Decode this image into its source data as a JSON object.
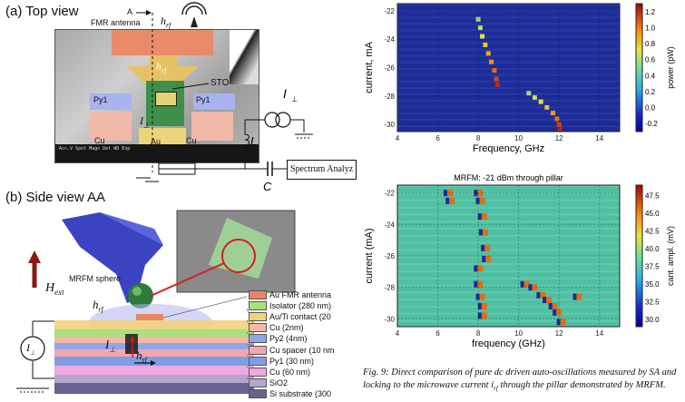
{
  "top_view": {
    "title": "(a) Top view",
    "antenna_label": "FMR antenna",
    "marker_a": "A",
    "h_rf": "h",
    "h_rf_sub": "rf",
    "sto_label": "STO",
    "py1_left": "Py1",
    "py1_right": "Py1",
    "cu_left": "Cu",
    "au_label": "Au",
    "cu_right": "Cu",
    "i_perp": "I",
    "inductor": "L",
    "capacitor": "C",
    "spectrum": "Spectrum Analyz",
    "sem_info": "Acc.V Spot Magn Det WD Exp"
  },
  "side_view": {
    "title": "(b) Side view AA",
    "mrfm_sphere": "MRFM sphere",
    "h_ext": "H",
    "h_ext_sub": "ext",
    "h_rf": "h",
    "h_rf_sub": "rf",
    "i_perp": "I",
    "layers": [
      {
        "label": "Au FMR antenna",
        "color": "#e8875f"
      },
      {
        "label": "Isolator (280 nm)",
        "color": "#a9e07c"
      },
      {
        "label": "Au/Ti contact (20",
        "color": "#f2d27a"
      },
      {
        "label": "Cu (2nm)",
        "color": "#f4b8a8"
      },
      {
        "label": "Py2 (4nm)",
        "color": "#8fa6e8"
      },
      {
        "label": "Cu spacer (10 nm",
        "color": "#f3a6b0"
      },
      {
        "label": "Py1 (30 nm)",
        "color": "#7f9de6"
      },
      {
        "label": "Cu (60 nm)",
        "color": "#f0a8e0"
      },
      {
        "label": "SiO2",
        "color": "#b7a6cc"
      },
      {
        "label": "Si substrate (300",
        "color": "#6a6390"
      }
    ]
  },
  "chart_data": [
    {
      "type": "heatmap",
      "title": "",
      "xlabel": "Frequency, GHz",
      "ylabel": "current, mA",
      "xlim": [
        4,
        15
      ],
      "ylim": [
        -30.5,
        -21.5
      ],
      "x_ticks": [
        4,
        6,
        8,
        10,
        12,
        14
      ],
      "y_ticks": [
        -22,
        -24,
        -26,
        -28,
        -30
      ],
      "colorbar_label": "power (pW)",
      "colorbar_ticks": [
        1.2,
        1.0,
        0.8,
        0.6,
        0.4,
        0.2,
        0.0,
        -0.2
      ],
      "colorbar_range": [
        -0.3,
        1.3
      ],
      "colors": {
        "background": "#1f2f9e",
        "peak": "#ff3a1a"
      },
      "series": [
        {
          "points": [
            [
              8.0,
              -22.6
            ],
            [
              8.1,
              -23.2
            ],
            [
              8.2,
              -23.8
            ],
            [
              8.35,
              -24.4
            ],
            [
              8.5,
              -25.0
            ],
            [
              8.65,
              -25.6
            ],
            [
              8.8,
              -26.2
            ],
            [
              8.9,
              -26.8
            ],
            [
              8.95,
              -27.2
            ]
          ]
        },
        {
          "points": [
            [
              10.5,
              -27.8
            ],
            [
              10.8,
              -28.1
            ],
            [
              11.1,
              -28.4
            ],
            [
              11.4,
              -28.8
            ],
            [
              11.7,
              -29.2
            ],
            [
              11.9,
              -29.6
            ],
            [
              12.0,
              -30.0
            ],
            [
              12.05,
              -30.3
            ]
          ]
        }
      ]
    },
    {
      "type": "heatmap",
      "title": "MRFM: -21 dBm through pillar",
      "xlabel": "frequency (GHz)",
      "ylabel": "current (mA)",
      "xlim": [
        4,
        15
      ],
      "ylim": [
        -30.5,
        -21.5
      ],
      "x_ticks": [
        4,
        6,
        8,
        10,
        12,
        14
      ],
      "y_ticks": [
        -22,
        -24,
        -26,
        -28,
        -30
      ],
      "colorbar_label": "cant. ampl. (mV)",
      "colorbar_ticks": [
        47.5,
        45.0,
        42.5,
        40.0,
        37.5,
        35.0,
        32.5,
        30.0
      ],
      "colorbar_range": [
        29,
        49
      ],
      "colors": {
        "background": "#55c7a8",
        "peak": "#e51a10"
      },
      "series": [
        {
          "points": [
            [
              6.6,
              -22.0
            ],
            [
              6.7,
              -22.5
            ],
            [
              8.1,
              -22.0
            ],
            [
              8.2,
              -22.5
            ],
            [
              8.3,
              -23.5
            ],
            [
              8.35,
              -24.5
            ],
            [
              8.45,
              -25.5
            ],
            [
              8.5,
              -26.2
            ],
            [
              8.1,
              -26.8
            ],
            [
              8.1,
              -27.8
            ],
            [
              8.2,
              -28.6
            ],
            [
              8.3,
              -29.2
            ],
            [
              8.3,
              -29.8
            ]
          ]
        },
        {
          "points": [
            [
              10.4,
              -27.8
            ],
            [
              10.8,
              -28.0
            ],
            [
              11.2,
              -28.5
            ],
            [
              11.5,
              -28.8
            ],
            [
              11.8,
              -29.2
            ],
            [
              12.0,
              -29.6
            ],
            [
              12.2,
              -30.2
            ],
            [
              13.0,
              -28.6
            ]
          ]
        }
      ]
    }
  ],
  "caption": {
    "line1": "Fig. 9: Direct comparison of pure dc driven auto-oscillations measured by SA and",
    "line2": "locking to the microwave current i",
    "line2_sub": "rf",
    "line2_end": " through the pillar demonstrated by MRFM."
  }
}
